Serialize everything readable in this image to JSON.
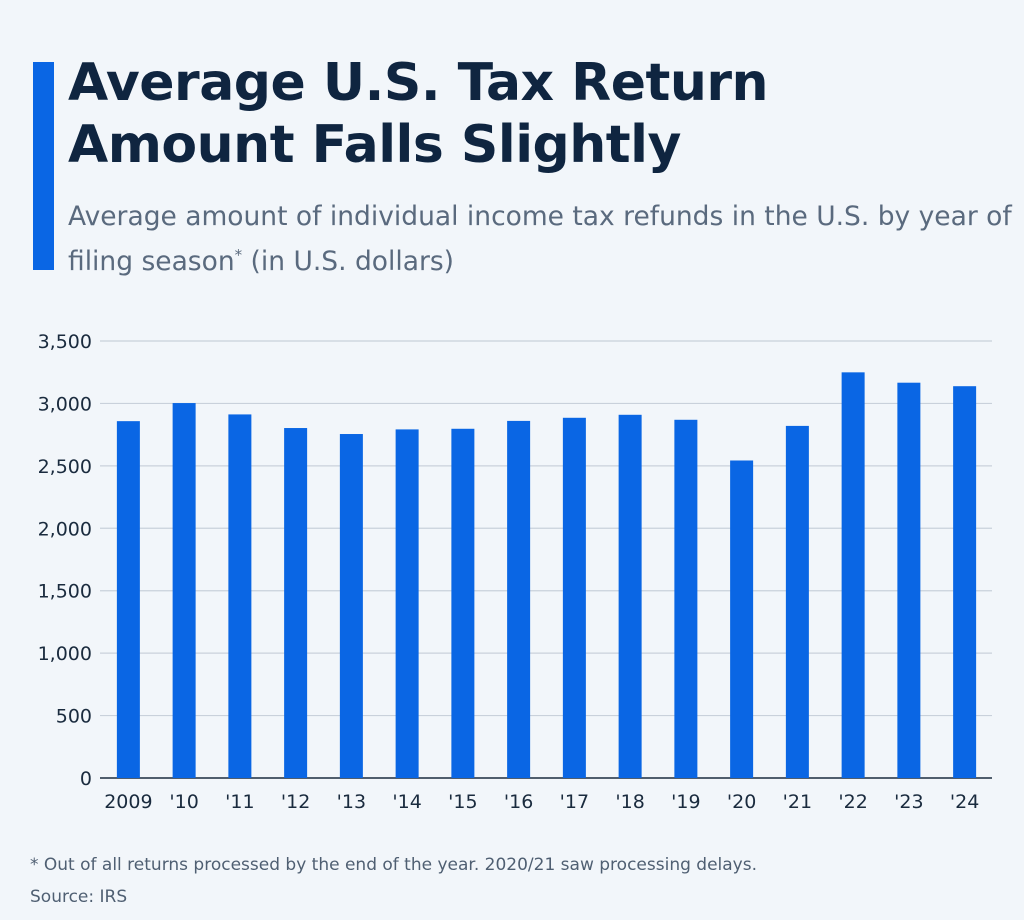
{
  "header": {
    "title": "Average U.S. Tax Return Amount Falls Slightly",
    "subtitle": "Average amount of individual income tax refunds in the U.S. by year of filing season",
    "subtitle_mark": "*",
    "subtitle_unit": " (in U.S. dollars)"
  },
  "colors": {
    "bar": "#0a66e4",
    "accent": "#0a66e4",
    "title": "#0f2540"
  },
  "chart_data": {
    "type": "bar",
    "categories": [
      "2009",
      "'10",
      "'11",
      "'12",
      "'13",
      "'14",
      "'15",
      "'16",
      "'17",
      "'18",
      "'19",
      "'20",
      "'21",
      "'22",
      "'23",
      "'24"
    ],
    "values": [
      2858,
      3003,
      2912,
      2803,
      2755,
      2792,
      2797,
      2860,
      2885,
      2909,
      2869,
      2543,
      2820,
      3249,
      3166,
      3138
    ],
    "ylim": [
      0,
      3500
    ],
    "yticks": [
      0,
      500,
      1000,
      1500,
      2000,
      2500,
      3000,
      3500
    ],
    "ytick_labels": [
      "0",
      "500",
      "1,000",
      "1,500",
      "2,000",
      "2,500",
      "3,000",
      "3,500"
    ],
    "grid": true,
    "title": "",
    "xlabel": "",
    "ylabel": ""
  },
  "footer": {
    "note": "* Out of all returns processed by the end of the year. 2020/21 saw processing delays.",
    "source": "Source: IRS"
  }
}
